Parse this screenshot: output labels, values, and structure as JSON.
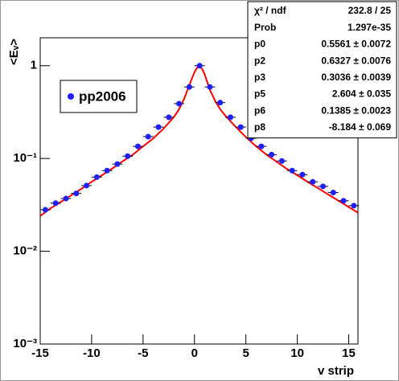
{
  "chart_data": {
    "type": "scatter",
    "xlabel": "v strip",
    "ylabel": "<Eᵥ>",
    "xlim": [
      -15,
      15.9
    ],
    "ylim": [
      0.001,
      2
    ],
    "log_y": true,
    "xticks": [
      -15,
      -10,
      -5,
      0,
      5,
      10,
      15
    ],
    "yticks": [
      {
        "value": 0.001,
        "label": "10⁻³"
      },
      {
        "value": 0.01,
        "label": "10⁻²"
      },
      {
        "value": 0.1,
        "label": "10⁻¹"
      },
      1
    ],
    "legend": "top-left",
    "series": [
      {
        "name": "pp2006",
        "color": "#1f1fff",
        "xerr": 0.5,
        "x": [
          -14.5,
          -13.5,
          -12.5,
          -11.5,
          -10.5,
          -9.5,
          -8.5,
          -7.5,
          -6.5,
          -5.5,
          -4.5,
          -3.5,
          -2.5,
          -1.5,
          -0.5,
          0.5,
          1.5,
          2.5,
          3.5,
          4.5,
          5.5,
          6.5,
          7.5,
          8.5,
          9.5,
          10.5,
          11.5,
          12.5,
          13.5,
          14.5,
          15.5
        ],
        "values": [
          0.028,
          0.033,
          0.037,
          0.042,
          0.051,
          0.063,
          0.074,
          0.087,
          0.106,
          0.135,
          0.172,
          0.218,
          0.278,
          0.39,
          0.59,
          1.0,
          0.59,
          0.4,
          0.278,
          0.218,
          0.165,
          0.135,
          0.11,
          0.094,
          0.074,
          0.067,
          0.056,
          0.05,
          0.043,
          0.035,
          0.031
        ]
      }
    ],
    "fit": {
      "color": "#ff0000",
      "x": [
        -15,
        -14,
        -13,
        -12,
        -11,
        -10,
        -9,
        -8,
        -7,
        -6,
        -5,
        -4,
        -3,
        -2,
        -1.5,
        -1,
        -0.5,
        0,
        0.25,
        0.5,
        0.75,
        1,
        1.5,
        2,
        2.5,
        3,
        4,
        5,
        6,
        7,
        8,
        9,
        10,
        11,
        12,
        13,
        14,
        15,
        15.9
      ],
      "values": [
        0.024,
        0.029,
        0.034,
        0.04,
        0.047,
        0.056,
        0.066,
        0.078,
        0.093,
        0.11,
        0.135,
        0.165,
        0.21,
        0.28,
        0.34,
        0.44,
        0.62,
        0.85,
        0.95,
        0.98,
        0.92,
        0.8,
        0.55,
        0.42,
        0.34,
        0.29,
        0.22,
        0.17,
        0.135,
        0.11,
        0.092,
        0.077,
        0.066,
        0.056,
        0.048,
        0.041,
        0.035,
        0.03,
        0.026
      ]
    },
    "stats": [
      {
        "label": "χ² / ndf",
        "value": "232.8 / 25"
      },
      {
        "label": "Prob",
        "value": "1.297e-35"
      },
      {
        "label": "p0",
        "value": "0.5561 ± 0.0072"
      },
      {
        "label": "p2",
        "value": "0.6327 ± 0.0076"
      },
      {
        "label": "p3",
        "value": "0.3036 ± 0.0039"
      },
      {
        "label": "p5",
        "value": "2.604 ± 0.035"
      },
      {
        "label": "p6",
        "value": "0.1385 ± 0.0023"
      },
      {
        "label": "p8",
        "value": "-8.184 ± 0.069"
      }
    ]
  }
}
